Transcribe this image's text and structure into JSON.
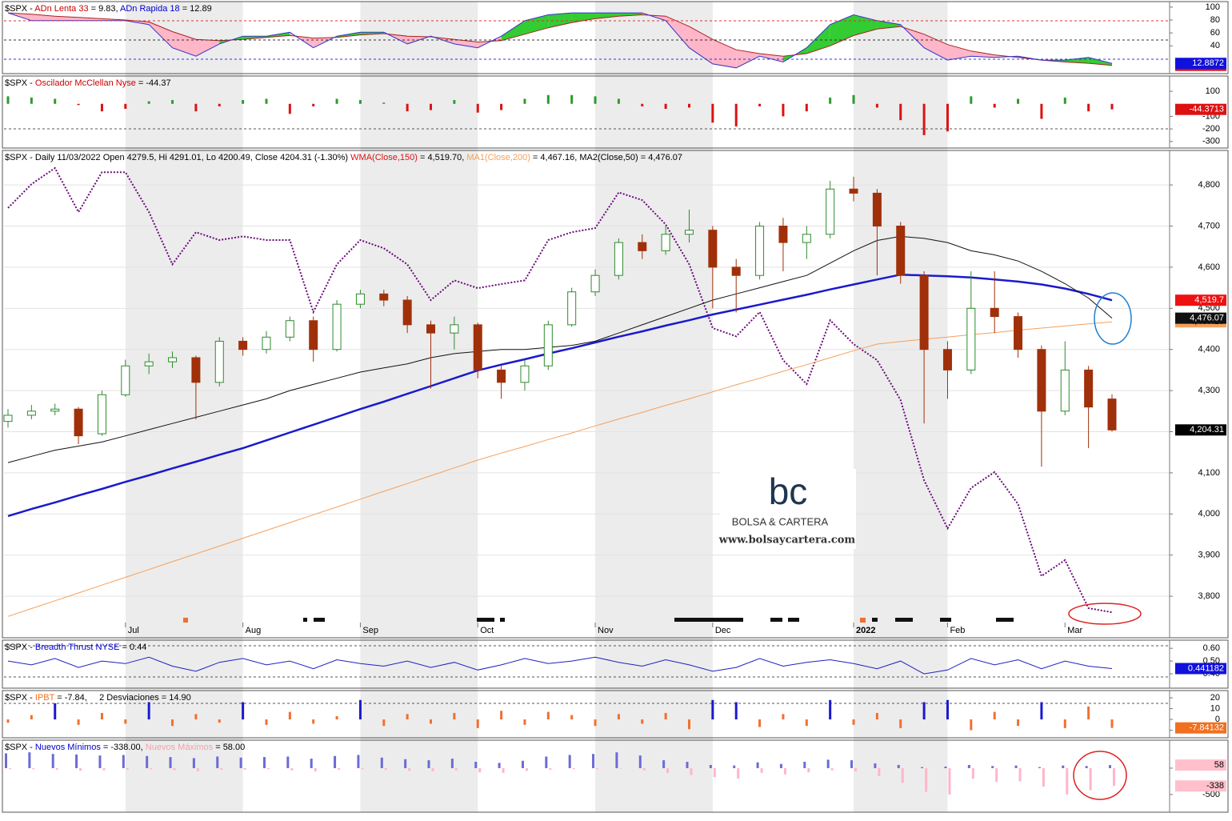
{
  "chart_data": [
    {
      "type": "area",
      "title": [
        {
          "text": "$SPX - ",
          "color": "#000000"
        },
        {
          "text": "ADn Lenta 33",
          "color": "#cc0000"
        },
        {
          "text": " = 9.83, ",
          "color": "#000000"
        },
        {
          "text": "ADn Rapida 18",
          "color": "#0000cc"
        },
        {
          "text": " = 12.89",
          "color": "#000000"
        }
      ],
      "ylim": [
        2,
        106
      ],
      "yticks": [
        100,
        80,
        60,
        40
      ],
      "fill_colors": {
        "above": "#33cc33",
        "below": "#ffb6c8"
      },
      "series": [
        {
          "color": "#aa2222",
          "end_label": "9.82508",
          "label_color": "#dd1111",
          "values": [
            91,
            89,
            86,
            84,
            82,
            80,
            77,
            62,
            50,
            48,
            50,
            53,
            56,
            52,
            53,
            57,
            59,
            55,
            54,
            50,
            46,
            48,
            58,
            68,
            76,
            82,
            86,
            88,
            86,
            70,
            50,
            34,
            28,
            24,
            28,
            40,
            56,
            66,
            70,
            58,
            42,
            32,
            26,
            22,
            18,
            15,
            13,
            9.83
          ]
        },
        {
          "color": "#3333cc",
          "end_label": "12.8872",
          "label_color": "#1111dd",
          "values": [
            91,
            79,
            79,
            79,
            79,
            79,
            73,
            37,
            24,
            43,
            55,
            55,
            61,
            37,
            55,
            61,
            61,
            43,
            55,
            43,
            37,
            55,
            79,
            88,
            91,
            91,
            91,
            91,
            79,
            37,
            12,
            6,
            24,
            15,
            37,
            73,
            88,
            79,
            73,
            37,
            18,
            24,
            22,
            24,
            18,
            18,
            22,
            12.89
          ]
        }
      ]
    },
    {
      "type": "bar",
      "title": [
        {
          "text": "$SPX - ",
          "color": "#000000"
        },
        {
          "text": "Oscilador McClellan Nyse",
          "color": "#cc0000"
        },
        {
          "text": " = -44.37",
          "color": "#000000"
        }
      ],
      "ylim": [
        -340,
        190
      ],
      "yticks": [
        100,
        -100,
        -200,
        -300
      ],
      "series": [
        {
          "color": "#2e9a2e",
          "color_negative": "#dd1111",
          "end_label": "-44.3713",
          "label_color": "#dd1111",
          "values": [
            60,
            50,
            40,
            -10,
            -60,
            -40,
            20,
            30,
            -60,
            -20,
            30,
            40,
            -80,
            -20,
            40,
            30,
            10,
            -60,
            -50,
            30,
            -70,
            -50,
            40,
            70,
            70,
            60,
            40,
            -20,
            -40,
            -30,
            -150,
            -180,
            -20,
            -100,
            -60,
            50,
            70,
            -30,
            -130,
            -250,
            -220,
            60,
            -30,
            40,
            -120,
            50,
            -60,
            -44.37
          ]
        }
      ]
    },
    {
      "type": "candlestick",
      "title": [
        {
          "text": "$SPX - Daily 11/03/2022 Open 4279.5, Hi 4291.01, Lo 4200.49, Close 4204.31 (-1.30%) ",
          "color": "#000000"
        },
        {
          "text": "WMA(Close,150)",
          "color": "#dd1111"
        },
        {
          "text": " = 4,519.70, ",
          "color": "#000000"
        },
        {
          "text": "MA1(Close,200)",
          "color": "#f5a05a"
        },
        {
          "text": " = 4,467.16, MA2(Close,50) = 4,476.07",
          "color": "#000000"
        }
      ],
      "categories": [
        null,
        null,
        null,
        null,
        null,
        "Jul",
        null,
        null,
        null,
        null,
        "Aug",
        null,
        null,
        null,
        null,
        "Sep",
        null,
        null,
        null,
        null,
        "Oct",
        null,
        null,
        null,
        null,
        "Nov",
        null,
        null,
        null,
        null,
        "Dec",
        null,
        null,
        null,
        null,
        null,
        "2022",
        null,
        null,
        null,
        "Feb",
        null,
        null,
        null,
        null,
        "Mar",
        null,
        null
      ],
      "ylim": [
        3736,
        4880
      ],
      "yticks": [
        {
          "value": 3800,
          "label": "3,800"
        },
        {
          "value": 3900,
          "label": "3,900"
        },
        {
          "value": 4000,
          "label": "4,000"
        },
        {
          "value": 4100,
          "label": "4,100"
        },
        {
          "value": 4200,
          "label": "4,200"
        },
        {
          "value": 4300,
          "label": "4,300"
        },
        {
          "value": 4400,
          "label": "4,400"
        },
        {
          "value": 4500,
          "label": "4,500"
        },
        {
          "value": 4600,
          "label": "4,600"
        },
        {
          "value": 4700,
          "label": "4,700"
        },
        {
          "value": 4800,
          "label": "4,800"
        }
      ],
      "grid": true,
      "up_color": "#2e8b2e",
      "down_color": "#a0300a",
      "close_label": "4,204.31",
      "open": [
        4225,
        4240,
        4250,
        4255,
        4195,
        4290,
        4360,
        4370,
        4380,
        4320,
        4420,
        4400,
        4430,
        4470,
        4400,
        4510,
        4535,
        4520,
        4460,
        4440,
        4460,
        4350,
        4320,
        4360,
        4460,
        4540,
        4580,
        4660,
        4640,
        4680,
        4690,
        4600,
        4580,
        4700,
        4660,
        4680,
        4790,
        4780,
        4700,
        4580,
        4400,
        4350,
        4500,
        4480,
        4400,
        4250,
        4350,
        4279.5
      ],
      "high": [
        4255,
        4265,
        4268,
        4260,
        4300,
        4375,
        4390,
        4395,
        4385,
        4430,
        4430,
        4445,
        4480,
        4480,
        4520,
        4545,
        4545,
        4530,
        4470,
        4480,
        4465,
        4360,
        4375,
        4470,
        4550,
        4595,
        4670,
        4680,
        4700,
        4740,
        4700,
        4620,
        4710,
        4720,
        4700,
        4810,
        4820,
        4790,
        4710,
        4590,
        4420,
        4590,
        4590,
        4490,
        4410,
        4420,
        4360,
        4291.01
      ],
      "low": [
        4210,
        4230,
        4240,
        4170,
        4190,
        4285,
        4340,
        4355,
        4230,
        4310,
        4385,
        4390,
        4420,
        4370,
        4395,
        4500,
        4505,
        4440,
        4305,
        4400,
        4330,
        4280,
        4300,
        4350,
        4455,
        4530,
        4570,
        4620,
        4630,
        4660,
        4500,
        4490,
        4570,
        4590,
        4620,
        4670,
        4760,
        4580,
        4560,
        4220,
        4280,
        4340,
        4440,
        4380,
        4115,
        4240,
        4160,
        4200.49
      ],
      "close": [
        4240,
        4250,
        4255,
        4190,
        4290,
        4360,
        4370,
        4380,
        4320,
        4420,
        4400,
        4430,
        4470,
        4400,
        4510,
        4535,
        4520,
        4460,
        4440,
        4460,
        4350,
        4320,
        4360,
        4460,
        4540,
        4580,
        4660,
        4640,
        4680,
        4690,
        4600,
        4580,
        4700,
        4660,
        4680,
        4790,
        4780,
        4700,
        4580,
        4400,
        4350,
        4500,
        4480,
        4400,
        4250,
        4350,
        4260,
        4204.31
      ],
      "series": [
        {
          "color": "#6a0a7a",
          "dash": true,
          "values": [
            4744,
            4802,
            4841,
            4734,
            4831,
            4831,
            4734,
            4607,
            4685,
            4666,
            4675,
            4666,
            4666,
            4491,
            4607,
            4666,
            4646,
            4607,
            4520,
            4568,
            4549,
            4559,
            4568,
            4666,
            4685,
            4695,
            4782,
            4763,
            4704,
            4607,
            4452,
            4432,
            4491,
            4374,
            4316,
            4471,
            4413,
            4374,
            4277,
            4082,
            3965,
            4063,
            4102,
            4024,
            3849,
            3888,
            3771,
            3761
          ]
        },
        {
          "color": "#f5a05a",
          "end_label": "4,467.16",
          "label_color": "#f5a05a",
          "values": [
            3751,
            3770,
            3789,
            3808,
            3827,
            3846,
            3865,
            3884,
            3903,
            3922,
            3941,
            3960,
            3979,
            3998,
            4017,
            4036,
            4055,
            4074,
            4093,
            4112,
            4131,
            4148,
            4164,
            4181,
            4197,
            4214,
            4231,
            4247,
            4264,
            4280,
            4297,
            4314,
            4330,
            4347,
            4363,
            4380,
            4397,
            4413,
            4419,
            4425,
            4430,
            4436,
            4441,
            4447,
            4452,
            4457,
            4462,
            4467.16
          ]
        },
        {
          "color": "#1a1acc",
          "width": 2.5,
          "end_label": "4,519.7",
          "label_color": "#ee1111",
          "values": [
            3995,
            4012,
            4028,
            4045,
            4061,
            4078,
            4094,
            4111,
            4127,
            4144,
            4160,
            4179,
            4198,
            4217,
            4236,
            4255,
            4273,
            4292,
            4311,
            4330,
            4349,
            4363,
            4376,
            4390,
            4403,
            4417,
            4431,
            4444,
            4458,
            4471,
            4485,
            4497,
            4509,
            4521,
            4533,
            4546,
            4558,
            4570,
            4582,
            4580,
            4578,
            4575,
            4570,
            4565,
            4558,
            4548,
            4535,
            4519.7
          ]
        },
        {
          "color": "#111111",
          "end_label": "4,476.07",
          "label_color": "#111111",
          "values": [
            4125,
            4140,
            4155,
            4165,
            4175,
            4190,
            4205,
            4220,
            4235,
            4250,
            4265,
            4280,
            4300,
            4315,
            4330,
            4345,
            4355,
            4365,
            4380,
            4390,
            4395,
            4400,
            4400,
            4405,
            4410,
            4420,
            4440,
            4460,
            4480,
            4500,
            4520,
            4535,
            4550,
            4565,
            4580,
            4610,
            4640,
            4665,
            4675,
            4670,
            4660,
            4640,
            4630,
            4615,
            4590,
            4560,
            4525,
            4476.07
          ]
        }
      ]
    },
    {
      "type": "line",
      "title": [
        {
          "text": "$SPX - ",
          "color": "#000000"
        },
        {
          "text": "Breadth Thrust NYSE",
          "color": "#0000cc"
        },
        {
          "text": " = 0.44",
          "color": "#000000"
        }
      ],
      "ylim": [
        0.3,
        0.645
      ],
      "yticks": [
        {
          "value": 0.6,
          "label": "0.60"
        },
        {
          "value": 0.5,
          "label": "0.50"
        },
        {
          "value": 0.4,
          "label": "0.40"
        }
      ],
      "series": [
        {
          "color": "#2020c0",
          "end_label": "0.441182",
          "label_color": "#1111dd",
          "values": [
            0.5,
            0.47,
            0.52,
            0.45,
            0.5,
            0.48,
            0.53,
            0.46,
            0.42,
            0.49,
            0.52,
            0.47,
            0.5,
            0.44,
            0.51,
            0.48,
            0.46,
            0.5,
            0.45,
            0.49,
            0.43,
            0.47,
            0.52,
            0.48,
            0.5,
            0.53,
            0.49,
            0.46,
            0.51,
            0.47,
            0.42,
            0.45,
            0.52,
            0.46,
            0.49,
            0.51,
            0.48,
            0.44,
            0.5,
            0.4,
            0.43,
            0.52,
            0.47,
            0.51,
            0.44,
            0.5,
            0.46,
            0.441182
          ]
        }
      ]
    },
    {
      "type": "bar",
      "title": [
        {
          "text": "$SPX - ",
          "color": "#000000"
        },
        {
          "text": "IPBT",
          "color": "#f07020"
        },
        {
          "text": " = -7.84,     2 Desviaciones = 14.90",
          "color": "#000000"
        }
      ],
      "ylim": [
        -15.5,
        24.5
      ],
      "yticks": [
        20,
        10,
        0,
        -10
      ],
      "threshold": 14.9,
      "threshold_color": "#1a1acc",
      "series": [
        {
          "color": "#f07030",
          "end_label": "-7.84132",
          "label_color": "#f07020",
          "values": [
            -3,
            4,
            15,
            -5,
            6,
            -4,
            16,
            -6,
            5,
            -3,
            16,
            -5,
            7,
            -4,
            3,
            18,
            -6,
            5,
            -4,
            6,
            -8,
            8,
            -5,
            7,
            4,
            -6,
            5,
            -4,
            6,
            -9,
            18,
            16,
            -7,
            5,
            -6,
            18,
            -5,
            6,
            -8,
            16,
            18,
            -10,
            7,
            -6,
            16,
            -8,
            12,
            -7.84132
          ]
        }
      ]
    },
    {
      "type": "bar",
      "title": [
        {
          "text": "$SPX - ",
          "color": "#000000"
        },
        {
          "text": "Nuevos Mínimos",
          "color": "#0000cc"
        },
        {
          "text": " = -338.00, ",
          "color": "#000000"
        },
        {
          "text": "Nuevos Máximos",
          "color": "#f4a0b0"
        },
        {
          "text": " = 58.00",
          "color": "#000000"
        }
      ],
      "ylim": [
        -790,
        485
      ],
      "yticks": [
        0,
        -500
      ],
      "series": [
        {
          "color": "#6b6bd6",
          "end_label": "58",
          "label_color": "#ffc0cb",
          "values": [
            280,
            300,
            270,
            260,
            240,
            250,
            230,
            210,
            190,
            220,
            200,
            210,
            220,
            180,
            230,
            250,
            200,
            170,
            150,
            180,
            120,
            100,
            140,
            220,
            250,
            270,
            300,
            240,
            150,
            120,
            60,
            50,
            110,
            80,
            120,
            160,
            150,
            90,
            60,
            20,
            30,
            60,
            40,
            50,
            20,
            50,
            40,
            58
          ]
        },
        {
          "color": "#ffb6c8",
          "end_label": "-338",
          "label_color": "#ffc0cb",
          "values": [
            -20,
            -20,
            -30,
            -50,
            -40,
            -30,
            -20,
            -40,
            -60,
            -30,
            -30,
            -20,
            -40,
            -60,
            -30,
            -20,
            -30,
            -50,
            -60,
            -40,
            -80,
            -90,
            -50,
            -30,
            -20,
            -20,
            -10,
            -40,
            -90,
            -130,
            -170,
            -200,
            -90,
            -120,
            -80,
            -40,
            -60,
            -150,
            -280,
            -450,
            -500,
            -200,
            -260,
            -250,
            -350,
            -500,
            -420,
            -338
          ]
        }
      ]
    }
  ],
  "watermark": {
    "logo": "bc",
    "brand": "BOLSA & CARTERA",
    "url": "www.bolsaycartera.com"
  }
}
